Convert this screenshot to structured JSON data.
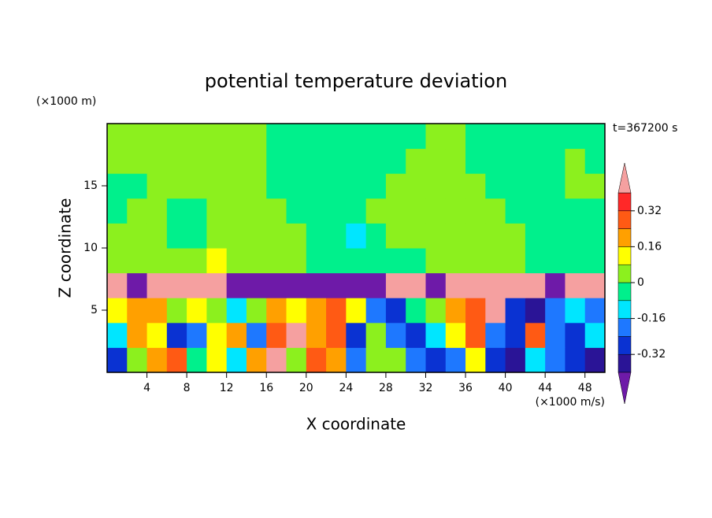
{
  "chart_data": {
    "type": "contour",
    "title": "potential temperature deviation",
    "xlabel": "X coordinate",
    "ylabel": "Z coordinate",
    "xunit": "(×1000 m/s)",
    "yunit": "(×1000 m)",
    "annotation": "t=367200 s",
    "xlim": [
      0,
      50
    ],
    "ylim": [
      0,
      20
    ],
    "xticks": [
      4,
      8,
      12,
      16,
      20,
      24,
      28,
      32,
      36,
      40,
      44,
      48
    ],
    "yticks": [
      5,
      10,
      15
    ],
    "levels": [
      -0.4,
      -0.32,
      -0.24,
      -0.16,
      -0.08,
      0,
      0.08,
      0.16,
      0.24,
      0.32,
      0.4
    ],
    "colors": [
      "#6e1aa8",
      "#2a1496",
      "#0a32d2",
      "#1e78ff",
      "#00e6ff",
      "#00f08c",
      "#8cf01e",
      "#ffff00",
      "#ffa000",
      "#ff5a14",
      "#ff2828",
      "#f5a0a0"
    ],
    "colorbar_ticks": [
      0.32,
      0.16,
      0,
      -0.16,
      -0.32
    ],
    "x": [
      1,
      3,
      5,
      7,
      9,
      11,
      13,
      15,
      17,
      19,
      21,
      23,
      25,
      27,
      29,
      31,
      33,
      35,
      37,
      39,
      41,
      43,
      45,
      47,
      49
    ],
    "y": [
      1,
      3,
      5,
      7,
      9,
      11,
      13,
      15,
      17,
      19
    ],
    "z": [
      [
        -0.28,
        0.04,
        0.2,
        0.28,
        -0.04,
        0.12,
        -0.12,
        0.2,
        0.44,
        0.04,
        0.28,
        0.2,
        -0.2,
        0.04,
        0.04,
        -0.2,
        -0.28,
        -0.2,
        0.12,
        -0.28,
        -0.36,
        -0.12,
        -0.2,
        -0.28,
        -0.36
      ],
      [
        -0.12,
        0.2,
        0.12,
        -0.28,
        -0.2,
        0.12,
        0.2,
        -0.2,
        0.28,
        0.44,
        0.2,
        0.28,
        -0.28,
        0.04,
        -0.2,
        -0.28,
        -0.12,
        0.12,
        0.28,
        -0.2,
        -0.28,
        0.28,
        -0.2,
        -0.28,
        -0.12
      ],
      [
        0.12,
        0.2,
        0.2,
        0.04,
        0.12,
        0.04,
        -0.12,
        0.04,
        0.2,
        0.12,
        0.2,
        0.28,
        0.12,
        -0.2,
        -0.28,
        -0.04,
        0.04,
        0.2,
        0.28,
        0.44,
        -0.28,
        -0.36,
        -0.2,
        -0.12,
        -0.2
      ],
      [
        0.44,
        -0.44,
        0.44,
        0.44,
        0.44,
        0.44,
        -0.44,
        -0.44,
        -0.44,
        -0.44,
        -0.44,
        -0.44,
        -0.44,
        -0.44,
        0.44,
        0.44,
        -0.44,
        0.44,
        0.44,
        0.44,
        0.44,
        0.44,
        -0.44,
        0.44,
        0.44
      ],
      [
        0.04,
        0.04,
        0.04,
        0.04,
        0.04,
        0.12,
        0.04,
        0.04,
        0.04,
        0.04,
        -0.04,
        -0.04,
        -0.04,
        -0.04,
        -0.04,
        -0.04,
        0.04,
        0.04,
        0.04,
        0.04,
        0.04,
        -0.04,
        -0.04,
        -0.04,
        -0.04
      ],
      [
        0.04,
        0.04,
        0.04,
        -0.04,
        -0.04,
        0.04,
        0.04,
        0.04,
        0.04,
        0.04,
        -0.04,
        -0.04,
        -0.12,
        -0.04,
        0.04,
        0.04,
        0.04,
        0.04,
        0.04,
        0.04,
        0.04,
        -0.04,
        -0.04,
        -0.04,
        -0.04
      ],
      [
        -0.04,
        0.04,
        0.04,
        -0.04,
        -0.04,
        0.04,
        0.04,
        0.04,
        0.04,
        -0.04,
        -0.04,
        -0.04,
        -0.04,
        0.04,
        0.04,
        0.04,
        0.04,
        0.04,
        0.04,
        0.04,
        -0.04,
        -0.04,
        -0.04,
        -0.04,
        -0.04
      ],
      [
        -0.04,
        -0.04,
        0.04,
        0.04,
        0.04,
        0.04,
        0.04,
        0.04,
        -0.04,
        -0.04,
        -0.04,
        -0.04,
        -0.04,
        -0.04,
        0.04,
        0.04,
        0.04,
        0.04,
        0.04,
        -0.04,
        -0.04,
        -0.04,
        -0.04,
        0.04,
        0.04
      ],
      [
        0.04,
        0.04,
        0.04,
        0.04,
        0.04,
        0.04,
        0.04,
        0.04,
        -0.04,
        -0.04,
        -0.04,
        -0.04,
        -0.04,
        -0.04,
        -0.04,
        0.04,
        0.04,
        0.04,
        -0.04,
        -0.04,
        -0.04,
        -0.04,
        -0.04,
        0.04,
        -0.04
      ],
      [
        0.04,
        0.04,
        0.04,
        0.04,
        0.04,
        0.04,
        0.04,
        0.04,
        -0.04,
        -0.04,
        -0.04,
        -0.04,
        -0.04,
        -0.04,
        -0.04,
        -0.04,
        0.04,
        0.04,
        -0.04,
        -0.04,
        -0.04,
        -0.04,
        -0.04,
        -0.04,
        -0.04
      ]
    ]
  }
}
